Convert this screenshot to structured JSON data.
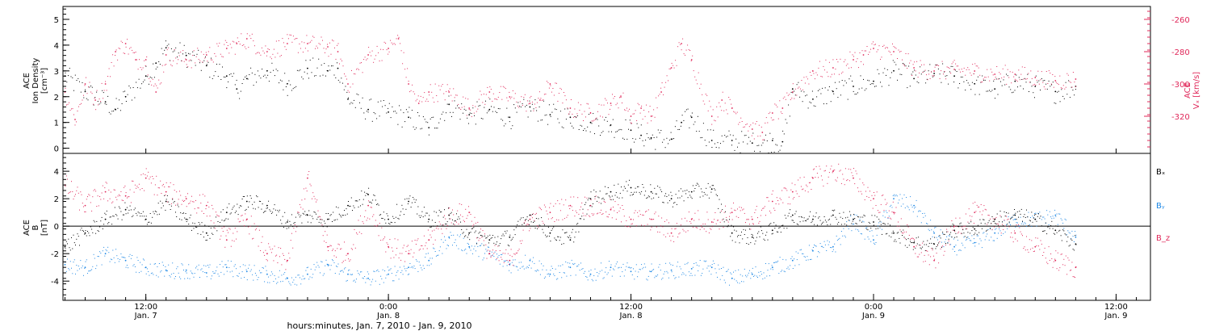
{
  "colors": {
    "black": "#000000",
    "red": "#e0285a",
    "blue": "#1e88e5",
    "axis": "#000000"
  },
  "xaxis": {
    "ticks": [
      {
        "line1": "12:00",
        "line2": "Jan. 7"
      },
      {
        "line1": "0:00",
        "line2": "Jan. 8"
      },
      {
        "line1": "12:00",
        "line2": "Jan. 8"
      },
      {
        "line1": "0:00",
        "line2": "Jan. 9"
      },
      {
        "line1": "12:00",
        "line2": "Jan. 9"
      }
    ],
    "title": "hours:minutes, Jan.  7, 2010 - Jan.  9, 2010"
  },
  "chart_data": [
    {
      "type": "scatter",
      "panel": "top",
      "x_unit": "hours since 2010-01-07 00:00",
      "xlim": [
        7.9,
        61.7
      ],
      "ylim_left": [
        -0.2,
        5.5
      ],
      "ylim_right": [
        -343,
        -252
      ],
      "left_axis": {
        "label_lines": [
          "ACE",
          "Ion Density",
          "[cm⁻³]"
        ],
        "ticks": [
          0,
          1,
          2,
          3,
          4,
          5
        ]
      },
      "right_axis": {
        "label_lines": [
          "ACE",
          "Vₓ [km/s]"
        ],
        "ticks": [
          -320,
          -300,
          -280,
          -260
        ]
      },
      "series": [
        {
          "color": "black",
          "axis": "left",
          "x": [
            8,
            9,
            10,
            10.5,
            11,
            12,
            12.5,
            13,
            14,
            15,
            16,
            16.5,
            17,
            18,
            19,
            20,
            21,
            21.5,
            22,
            23,
            24,
            25,
            26,
            27,
            28,
            29,
            30,
            31,
            32,
            33,
            34,
            35,
            36,
            36.5,
            37,
            38,
            38.5,
            39,
            40,
            41,
            42,
            43,
            43.5,
            44,
            45,
            46,
            47,
            48,
            49,
            50,
            51,
            52,
            53,
            54,
            55,
            56,
            57,
            58
          ],
          "y": [
            2.8,
            2.2,
            1.8,
            1.5,
            2.0,
            2.8,
            3.3,
            3.9,
            3.6,
            3.2,
            2.8,
            2.3,
            2.7,
            3.0,
            2.5,
            3.1,
            3.0,
            3.1,
            1.9,
            1.5,
            1.4,
            1.2,
            0.8,
            1.7,
            1.3,
            1.5,
            1.2,
            1.6,
            1.3,
            1.2,
            1.0,
            0.9,
            0.7,
            0.5,
            0.4,
            0.35,
            1.0,
            1.2,
            0.3,
            0.3,
            0.2,
            0.3,
            0.25,
            2.3,
            1.9,
            2.2,
            2.4,
            2.6,
            3.0,
            2.7,
            2.9,
            2.8,
            2.5,
            2.3,
            2.6,
            2.4,
            2.2,
            2.4
          ]
        },
        {
          "color": "red",
          "axis": "right",
          "x": [
            8,
            8.5,
            9,
            9.5,
            10,
            10.5,
            11,
            11.5,
            12,
            12.5,
            13,
            14,
            15,
            16,
            16.5,
            17,
            18,
            19,
            20,
            21,
            21.5,
            22,
            23,
            24,
            24.5,
            25,
            25.5,
            26,
            27,
            28,
            29,
            30,
            31,
            31.5,
            32,
            33,
            34,
            35,
            35.5,
            36,
            36.5,
            37,
            37.5,
            38,
            38.5,
            39,
            40,
            40.5,
            41,
            42,
            42.5,
            43,
            43.5,
            44,
            45,
            46,
            47,
            47.5,
            48,
            49,
            50,
            51,
            52,
            53,
            54,
            55,
            56,
            57,
            58
          ],
          "y": [
            -305,
            -322,
            -300,
            -310,
            -300,
            -280,
            -275,
            -285,
            -285,
            -305,
            -282,
            -285,
            -282,
            -278,
            -275,
            -272,
            -280,
            -275,
            -275,
            -277,
            -280,
            -300,
            -282,
            -278,
            -272,
            -300,
            -312,
            -305,
            -305,
            -315,
            -305,
            -308,
            -312,
            -310,
            -300,
            -315,
            -318,
            -312,
            -308,
            -320,
            -315,
            -320,
            -305,
            -290,
            -275,
            -285,
            -320,
            -310,
            -315,
            -328,
            -330,
            -318,
            -315,
            -305,
            -292,
            -290,
            -285,
            -282,
            -278,
            -280,
            -290,
            -292,
            -291,
            -292,
            -294,
            -294,
            -296,
            -298,
            -297
          ]
        }
      ]
    },
    {
      "type": "scatter",
      "panel": "bottom",
      "x_unit": "hours since 2010-01-07 00:00",
      "xlim": [
        7.9,
        61.7
      ],
      "ylim": [
        -5.4,
        5.3
      ],
      "left_axis": {
        "label_lines": [
          "ACE",
          "B",
          "[nT]"
        ],
        "ticks": [
          -4,
          -2,
          0,
          2,
          4
        ]
      },
      "reference_line": 0,
      "legend": [
        {
          "label": "Bₓ",
          "color": "black"
        },
        {
          "label": "Bᵧ",
          "color": "blue"
        },
        {
          "label": "B_z",
          "color": "red"
        }
      ],
      "series": [
        {
          "name": "Bₓ",
          "color": "black",
          "x": [
            8,
            9,
            10,
            11,
            12,
            13,
            14,
            15,
            16,
            17,
            18,
            19,
            20,
            21,
            22,
            23,
            24,
            25,
            26,
            27,
            28,
            29,
            30,
            31,
            32,
            33,
            34,
            35,
            36,
            37,
            38,
            39,
            40,
            41,
            42,
            43,
            44,
            45,
            46,
            47,
            48,
            49,
            50,
            51,
            52,
            53,
            54,
            55,
            56,
            57,
            58
          ],
          "y": [
            -1.5,
            -0.5,
            0.5,
            1.2,
            0.5,
            1.8,
            0.5,
            -0.5,
            1.0,
            1.8,
            1.5,
            0.3,
            0.8,
            0.5,
            1.5,
            2.3,
            0.5,
            1.8,
            0.5,
            0.8,
            -0.5,
            -1.0,
            -0.8,
            0.8,
            -0.5,
            -1.0,
            2.0,
            2.5,
            2.8,
            2.5,
            2.0,
            2.5,
            2.7,
            -0.5,
            -0.8,
            -0.3,
            0.8,
            0.5,
            0.8,
            0.5,
            0.3,
            -0.5,
            -1.2,
            -1.3,
            -0.3,
            -0.2,
            0.5,
            0.8,
            0.5,
            -0.3,
            -1.3
          ]
        },
        {
          "name": "Bᵧ",
          "color": "blue",
          "x": [
            8,
            9,
            10,
            11,
            12,
            13,
            14,
            15,
            16,
            17,
            18,
            19,
            20,
            21,
            22,
            23,
            24,
            25,
            26,
            27,
            28,
            29,
            30,
            31,
            32,
            33,
            34,
            35,
            36,
            37,
            38,
            39,
            40,
            41,
            42,
            43,
            44,
            45,
            46,
            47,
            48,
            49,
            50,
            51,
            52,
            53,
            54,
            55,
            56,
            57,
            58
          ],
          "y": [
            -2.8,
            -3.0,
            -2.0,
            -2.5,
            -3.0,
            -3.2,
            -3.2,
            -3.4,
            -3.0,
            -3.3,
            -3.5,
            -3.8,
            -3.5,
            -2.8,
            -3.5,
            -3.8,
            -3.5,
            -3.0,
            -2.5,
            -0.8,
            -1.5,
            -2.0,
            -2.8,
            -2.5,
            -3.5,
            -3.0,
            -3.5,
            -3.0,
            -3.3,
            -3.3,
            -3.2,
            -3.1,
            -3.0,
            -3.8,
            -3.5,
            -3.0,
            -2.5,
            -1.8,
            -1.5,
            0.5,
            -1.0,
            2.0,
            1.5,
            -0.5,
            -1.5,
            -1.2,
            -0.5,
            0.5,
            0.5,
            0.8,
            -0.8
          ]
        },
        {
          "name": "B_z",
          "color": "red",
          "x": [
            8,
            9,
            10,
            11,
            12,
            13,
            14,
            15,
            16,
            17,
            18,
            19,
            20,
            21,
            22,
            23,
            24,
            25,
            26,
            27,
            28,
            29,
            30,
            31,
            32,
            33,
            34,
            35,
            36,
            37,
            38,
            39,
            40,
            41,
            42,
            43,
            44,
            45,
            46,
            47,
            48,
            49,
            50,
            51,
            52,
            53,
            54,
            55,
            56,
            57,
            58
          ],
          "y": [
            3.0,
            1.5,
            2.5,
            2.2,
            3.5,
            2.5,
            2.0,
            1.5,
            -1.0,
            0.5,
            -2.0,
            -2.5,
            3.5,
            -1.5,
            -2.0,
            1.5,
            -1.5,
            -2.0,
            -1.0,
            0.8,
            1.0,
            -2.0,
            -2.5,
            0.5,
            1.0,
            1.5,
            1.5,
            1.2,
            0.5,
            0.5,
            -0.5,
            0.5,
            0.3,
            1.0,
            0.5,
            1.8,
            2.5,
            3.5,
            4.0,
            3.5,
            2.0,
            1.0,
            -1.5,
            -2.5,
            0.0,
            1.0,
            0.5,
            -0.5,
            -1.5,
            -2.5,
            -3.0
          ]
        }
      ]
    }
  ]
}
